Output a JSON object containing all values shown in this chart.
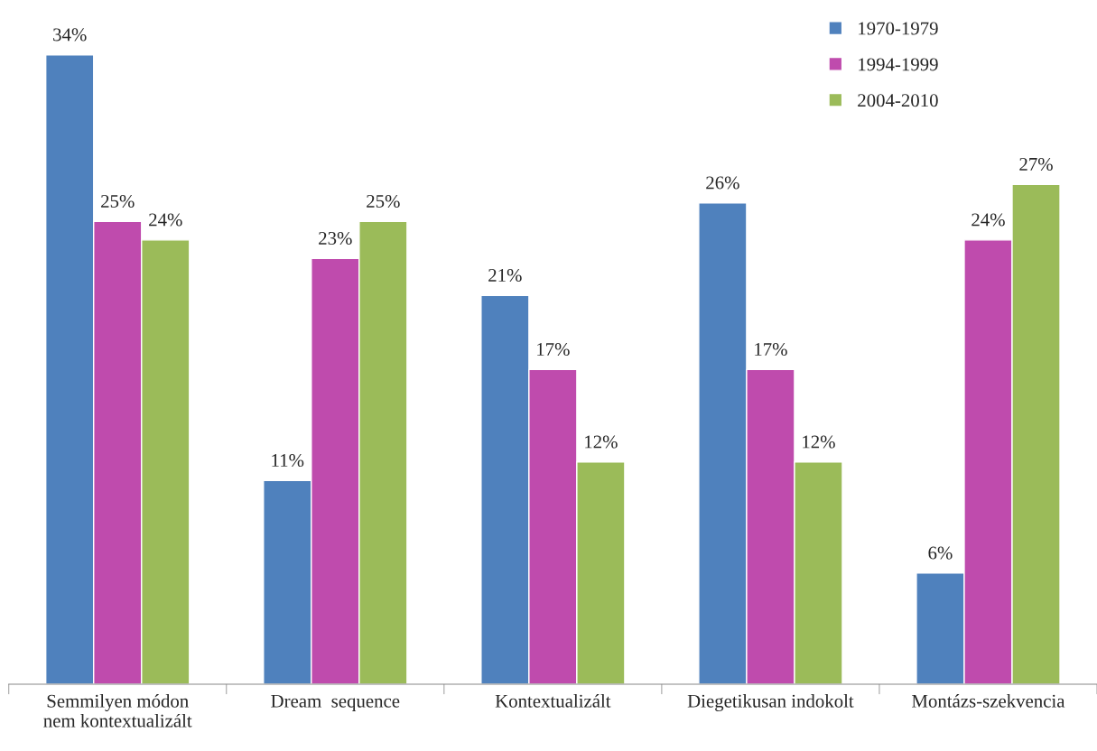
{
  "chart_data": {
    "type": "bar",
    "categories": [
      "Semmilyen módon\nnem kontextualizált",
      "Dream  sequence",
      "Kontextualizált",
      "Diegetikusan indokolt",
      "Montázs-szekvencia"
    ],
    "series": [
      {
        "name": "1970-1979",
        "color": "#4f81bd",
        "values": [
          34,
          11,
          21,
          26,
          6
        ],
        "value_labels": [
          "34%",
          "11%",
          "21%",
          "26%",
          "6%"
        ]
      },
      {
        "name": "1994-1999",
        "color": "#bf4bad",
        "values": [
          25,
          23,
          17,
          17,
          24
        ],
        "value_labels": [
          "25%",
          "23%",
          "17%",
          "17%",
          "24%"
        ]
      },
      {
        "name": "2004-2010",
        "color": "#9bbb59",
        "values": [
          24,
          25,
          12,
          12,
          27
        ],
        "value_labels": [
          "24%",
          "25%",
          "12%",
          "12%",
          "27%"
        ]
      }
    ],
    "legend": "top right",
    "grid": false
  }
}
